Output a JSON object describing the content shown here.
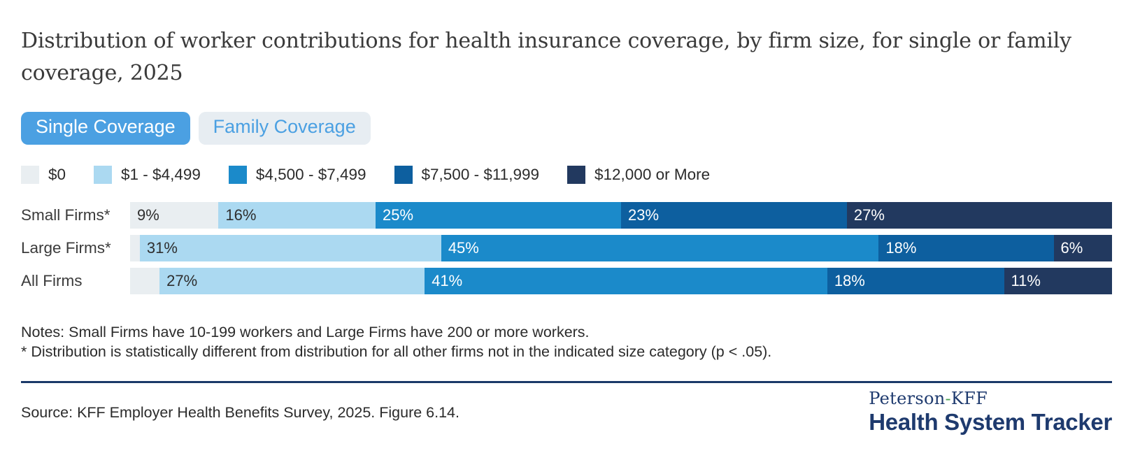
{
  "title": "Distribution of worker contributions for health insurance coverage, by firm size, for single or family coverage, 2025",
  "toggle": {
    "single_label": "Single Coverage",
    "family_label": "Family Coverage",
    "active": "Single Coverage",
    "active_bg": "#4BA0E2",
    "active_text": "#FFFFFF",
    "inactive_bg": "#E7EDF2",
    "inactive_text": "#4BA0E2"
  },
  "chart_data": {
    "type": "bar",
    "orientation": "horizontal",
    "stacked": true,
    "unit": "%",
    "xlim": [
      0,
      100
    ],
    "grid": false,
    "legend_position": "top",
    "label_min_value": 5,
    "categories": [
      "Small Firms*",
      "Large Firms*",
      "All Firms"
    ],
    "series": [
      {
        "name": "$0",
        "color": "#E9EEF1",
        "label_color": "#2e2e2e",
        "values": [
          9,
          1,
          3
        ]
      },
      {
        "name": "$1 - $4,499",
        "color": "#ABD9F1",
        "label_color": "#2e2e2e",
        "values": [
          16,
          31,
          27
        ]
      },
      {
        "name": "$4,500 - $7,499",
        "color": "#1B8ACA",
        "label_color": "#FFFFFF",
        "values": [
          25,
          45,
          41
        ]
      },
      {
        "name": "$7,500 - $11,999",
        "color": "#0D5F9F",
        "label_color": "#FFFFFF",
        "values": [
          23,
          18,
          18
        ]
      },
      {
        "name": "$12,000 or More",
        "color": "#22395F",
        "label_color": "#FFFFFF",
        "values": [
          27,
          6,
          11
        ]
      }
    ]
  },
  "notes": {
    "line1": "Notes: Small Firms have 10-199 workers and Large Firms have 200 or more workers.",
    "line2": "* Distribution is statistically different from distribution for all other firms not in the indicated size category (p < .05)."
  },
  "source": "Source: KFF Employer Health Benefits Survey, 2025. Figure 6.14.",
  "logo": {
    "line1_left": "Peterson",
    "line1_hyphen": "-",
    "line1_right": "KFF",
    "line2": "Health System Tracker",
    "navy": "#1E3A6E",
    "green": "#4CA153"
  }
}
